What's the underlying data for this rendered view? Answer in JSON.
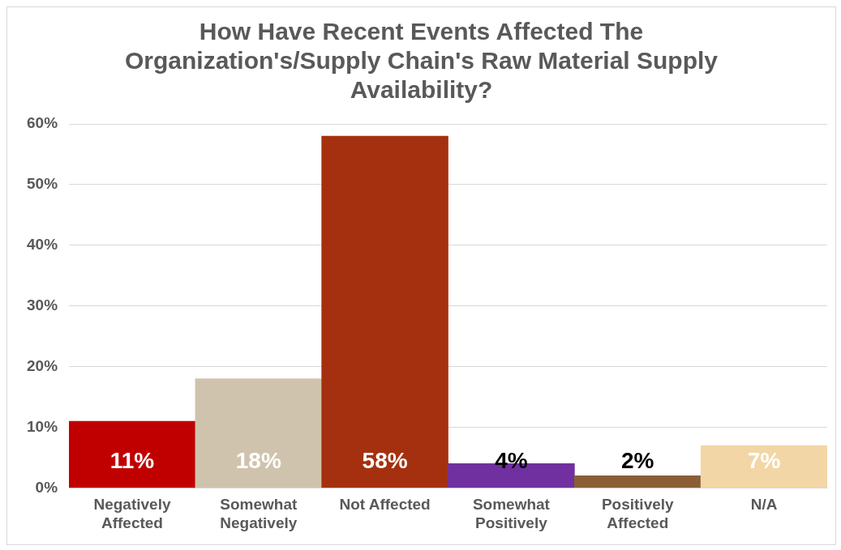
{
  "chart_data": {
    "type": "bar",
    "title": "How Have Recent Events Affected The Organization's/Supply Chain's Raw Material Supply Availability?",
    "categories": [
      "Negatively Affected",
      "Somewhat Negatively",
      "Not Affected",
      "Somewhat Positively",
      "Positively Affected",
      "N/A"
    ],
    "values": [
      11,
      18,
      58,
      4,
      2,
      7
    ],
    "colors": [
      "#c00000",
      "#d0c3ad",
      "#a5300f",
      "#7030a0",
      "#8a5f38",
      "#f3d6a6"
    ],
    "value_labels": [
      "11%",
      "18%",
      "58%",
      "4%",
      "2%",
      "7%"
    ],
    "ylim": [
      0,
      60
    ],
    "yticks": [
      {
        "value": 0,
        "label": "0%"
      },
      {
        "value": 10,
        "label": "10%"
      },
      {
        "value": 20,
        "label": "20%"
      },
      {
        "value": 30,
        "label": "30%"
      },
      {
        "value": 40,
        "label": "40%"
      },
      {
        "value": 50,
        "label": "50%"
      },
      {
        "value": 60,
        "label": "60%"
      }
    ],
    "grid": "y",
    "legend": false
  }
}
